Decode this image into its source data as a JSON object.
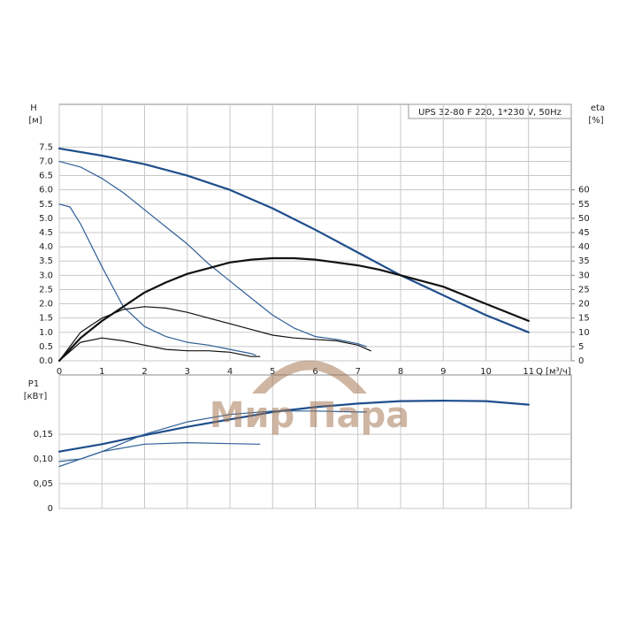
{
  "watermark": "Мир Пара",
  "chart_data": [
    {
      "type": "line",
      "title": "UPS 32-80 F 220, 1*230 V, 50Hz",
      "y_label": "H",
      "y_unit": "[м]",
      "y2_label": "eta",
      "y2_unit": "[%]",
      "x_label": "Q [м³/ч]",
      "xlim": [
        0,
        12
      ],
      "xticks": [
        0,
        1,
        2,
        3,
        4,
        5,
        6,
        7,
        8,
        9,
        10,
        11
      ],
      "ylim": [
        0,
        9
      ],
      "yticks": [
        {
          "value": 0,
          "label": "0.0"
        },
        {
          "value": 0.5,
          "label": "0.5"
        },
        {
          "value": 1,
          "label": "1.0"
        },
        {
          "value": 1.5,
          "label": "1.5"
        },
        {
          "value": 2,
          "label": "2.0"
        },
        {
          "value": 2.5,
          "label": "2.5"
        },
        {
          "value": 3,
          "label": "3.0"
        },
        {
          "value": 3.5,
          "label": "3.5"
        },
        {
          "value": 4,
          "label": "4.0"
        },
        {
          "value": 4.5,
          "label": "4.5"
        },
        {
          "value": 5,
          "label": "5.0"
        },
        {
          "value": 5.5,
          "label": "5.5"
        },
        {
          "value": 6,
          "label": "6.0"
        },
        {
          "value": 6.5,
          "label": "6.5"
        },
        {
          "value": 7,
          "label": "7.0"
        },
        {
          "value": 7.5,
          "label": "7.5"
        }
      ],
      "y2lim": [
        0,
        90
      ],
      "y2ticks": [
        0,
        5,
        10,
        15,
        20,
        25,
        30,
        35,
        40,
        45,
        50,
        55,
        60
      ],
      "grid": true,
      "series": [
        {
          "color": "#1f4e8c",
          "width": 2.2,
          "x": [
            0,
            1,
            2,
            3,
            4,
            5,
            6,
            7,
            8,
            9,
            10,
            11
          ],
          "values": [
            7.45,
            7.2,
            6.9,
            6.5,
            6.0,
            5.35,
            4.6,
            3.8,
            3.0,
            2.3,
            1.6,
            1.0
          ]
        },
        {
          "color": "#2f5f96",
          "width": 1.2,
          "x": [
            0,
            0.5,
            1,
            1.5,
            2,
            2.5,
            3,
            3.5,
            4,
            4.5,
            5,
            5.5,
            6,
            6.5,
            7,
            7.2
          ],
          "values": [
            7.0,
            6.8,
            6.4,
            5.9,
            5.3,
            4.7,
            4.1,
            3.4,
            2.8,
            2.2,
            1.6,
            1.15,
            0.85,
            0.75,
            0.6,
            0.5
          ]
        },
        {
          "color": "#2f5f96",
          "width": 1.2,
          "x": [
            0,
            0.25,
            0.5,
            1,
            1.5,
            2,
            2.5,
            3,
            3.5,
            4,
            4.5,
            4.6
          ],
          "values": [
            5.5,
            5.4,
            4.8,
            3.3,
            1.9,
            1.2,
            0.85,
            0.65,
            0.55,
            0.4,
            0.25,
            0.2
          ]
        },
        {
          "color": "#111111",
          "width": 2.2,
          "axis": "y2",
          "x": [
            0,
            0.5,
            1,
            1.5,
            2,
            2.5,
            3,
            3.5,
            4,
            4.5,
            5,
            5.5,
            6,
            6.5,
            7,
            7.5,
            8,
            9,
            10,
            11
          ],
          "values": [
            0,
            8,
            14,
            19,
            24,
            27.5,
            30.5,
            32.5,
            34.5,
            35.5,
            36,
            36,
            35.5,
            34.5,
            33.5,
            32,
            30,
            26,
            20,
            14
          ]
        },
        {
          "color": "#111111",
          "width": 1.2,
          "axis": "y2",
          "x": [
            0,
            0.5,
            1,
            1.5,
            2,
            2.5,
            3,
            3.5,
            4,
            4.5,
            5,
            5.5,
            6,
            6.5,
            7,
            7.3
          ],
          "values": [
            0,
            10,
            15,
            18,
            19,
            18.5,
            17,
            15,
            13,
            11,
            9,
            8,
            7.5,
            7,
            5.5,
            3.5
          ]
        },
        {
          "color": "#111111",
          "width": 1.2,
          "axis": "y2",
          "x": [
            0,
            0.5,
            1,
            1.5,
            2,
            2.5,
            3,
            3.5,
            4,
            4.5,
            4.7
          ],
          "values": [
            0,
            6.5,
            8,
            7,
            5.5,
            4,
            3.5,
            3.5,
            3,
            1.5,
            1.5
          ]
        }
      ]
    },
    {
      "type": "line",
      "y_label": "P1",
      "y_unit": "[кВт]",
      "xlim": [
        0,
        12
      ],
      "xticks": [
        0,
        1,
        2,
        3,
        4,
        5,
        6,
        7,
        8,
        9,
        10,
        11
      ],
      "ylim": [
        0,
        0.27
      ],
      "yticks": [
        0,
        {
          "value": 0.05,
          "label": "0,05"
        },
        {
          "value": 0.1,
          "label": "0,10"
        },
        {
          "value": 0.15,
          "label": "0,15"
        }
      ],
      "grid": true,
      "series": [
        {
          "color": "#1f4e8c",
          "width": 2.2,
          "x": [
            0,
            1,
            2,
            3,
            4,
            5,
            6,
            7,
            8,
            9,
            10,
            11
          ],
          "values": [
            0.115,
            0.13,
            0.148,
            0.165,
            0.18,
            0.195,
            0.205,
            0.212,
            0.217,
            0.218,
            0.217,
            0.21
          ]
        },
        {
          "color": "#2f5f96",
          "width": 1.2,
          "x": [
            0,
            0.5,
            1,
            2,
            3,
            4,
            5,
            6,
            7,
            7.2
          ],
          "values": [
            0.095,
            0.1,
            0.115,
            0.15,
            0.175,
            0.19,
            0.197,
            0.197,
            0.195,
            0.195
          ]
        },
        {
          "color": "#2f5f96",
          "width": 1.2,
          "x": [
            0,
            0.5,
            1,
            2,
            3,
            4,
            4.7
          ],
          "values": [
            0.085,
            0.1,
            0.115,
            0.13,
            0.133,
            0.131,
            0.13
          ]
        }
      ]
    }
  ]
}
